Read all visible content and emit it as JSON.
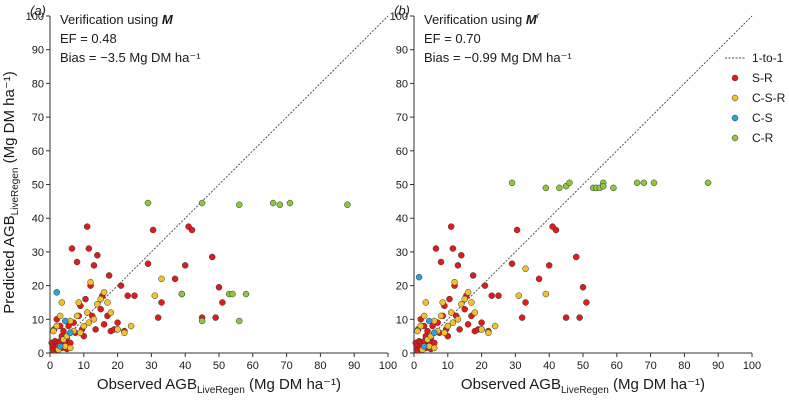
{
  "chart_data": [
    {
      "type": "scatter",
      "panel_label": "(a)",
      "annotation": {
        "title_prefix": "Verification using ",
        "title_var": "M",
        "title_sup": "",
        "ef": "EF = 0.48",
        "bias": "Bias = −3.5 Mg DM ha⁻¹"
      },
      "xlabel": {
        "main": "Observed AGB",
        "sub": "LiveRegen",
        "units": " (Mg DM ha⁻¹)"
      },
      "ylabel": {
        "main": "Predicted AGB",
        "sub": "LiveRegen",
        "units": " (Mg DM ha⁻¹)"
      },
      "xlim": [
        0,
        100
      ],
      "ylim": [
        0,
        100
      ],
      "xticks": [
        "0",
        "10",
        "20",
        "30",
        "40",
        "50",
        "60",
        "70",
        "80",
        "90",
        "100"
      ],
      "yticks": [
        "0",
        "10",
        "20",
        "30",
        "40",
        "50",
        "60",
        "70",
        "80",
        "90",
        "100"
      ],
      "reference_line": "1-to-1",
      "series": [
        {
          "name": "S-R",
          "color": "#e31a1c",
          "points": [
            [
              0.5,
              3
            ],
            [
              0.8,
              1.5
            ],
            [
              1,
              2.5
            ],
            [
              1.2,
              0.8
            ],
            [
              1.5,
              3.5
            ],
            [
              1.8,
              2
            ],
            [
              2,
              1.2
            ],
            [
              2.2,
              3
            ],
            [
              2.5,
              2.2
            ],
            [
              3,
              3.5
            ],
            [
              3.5,
              1.5
            ],
            [
              4,
              2.5
            ],
            [
              4.5,
              3
            ],
            [
              5,
              1.2
            ],
            [
              1.2,
              7
            ],
            [
              2,
              10
            ],
            [
              3,
              8
            ],
            [
              3.5,
              5
            ],
            [
              4,
              6.5
            ],
            [
              5,
              4.5
            ],
            [
              5.5,
              8
            ],
            [
              6,
              3
            ],
            [
              6.5,
              31
            ],
            [
              7,
              9
            ],
            [
              7.5,
              6
            ],
            [
              8,
              27
            ],
            [
              8.5,
              11
            ],
            [
              9,
              14
            ],
            [
              9.5,
              7
            ],
            [
              10,
              5
            ],
            [
              10.5,
              16
            ],
            [
              11,
              37.5
            ],
            [
              11.5,
              31
            ],
            [
              12,
              20
            ],
            [
              12.5,
              11
            ],
            [
              13,
              26
            ],
            [
              13.5,
              7
            ],
            [
              14,
              29
            ],
            [
              15,
              13
            ],
            [
              15.5,
              17
            ],
            [
              16,
              8.5
            ],
            [
              17,
              11
            ],
            [
              17.5,
              23
            ],
            [
              18,
              6.5
            ],
            [
              19,
              7
            ],
            [
              20,
              9
            ],
            [
              21,
              20
            ],
            [
              22,
              6.5
            ],
            [
              23,
              17
            ],
            [
              25,
              17
            ],
            [
              29,
              26.5
            ],
            [
              30.5,
              36.5
            ],
            [
              32,
              10.5
            ],
            [
              33,
              15
            ],
            [
              37,
              22
            ],
            [
              40,
              26
            ],
            [
              41,
              37.5
            ],
            [
              42,
              36.5
            ],
            [
              45,
              10.5
            ],
            [
              48,
              28.5
            ],
            [
              49,
              10.5
            ],
            [
              50,
              19.5
            ],
            [
              51,
              15
            ],
            [
              20,
              7
            ]
          ]
        },
        {
          "name": "C-S-R",
          "color": "#f2c12e",
          "points": [
            [
              1,
              6.5
            ],
            [
              2,
              8
            ],
            [
              3,
              11
            ],
            [
              3.5,
              15
            ],
            [
              4,
              4
            ],
            [
              5,
              5
            ],
            [
              6,
              9.5
            ],
            [
              7,
              6.5
            ],
            [
              8,
              11
            ],
            [
              8.5,
              15
            ],
            [
              9,
              6
            ],
            [
              10,
              8
            ],
            [
              11,
              12
            ],
            [
              11.5,
              9
            ],
            [
              12,
              21
            ],
            [
              13,
              10
            ],
            [
              14,
              14.5
            ],
            [
              15,
              16
            ],
            [
              16,
              18
            ],
            [
              17,
              15
            ],
            [
              18,
              12
            ],
            [
              20,
              7
            ],
            [
              22,
              6
            ],
            [
              24,
              8
            ],
            [
              31,
              17
            ],
            [
              33,
              22
            ],
            [
              39,
              17.5
            ],
            [
              2.5,
              1
            ],
            [
              4.5,
              2
            ],
            [
              6,
              1.5
            ]
          ]
        },
        {
          "name": "C-S",
          "color": "#29a3d9",
          "points": [
            [
              2,
              18
            ],
            [
              4.5,
              9.5
            ],
            [
              6,
              6
            ],
            [
              3,
              2
            ]
          ]
        },
        {
          "name": "C-R",
          "color": "#8dc63f",
          "points": [
            [
              29,
              44.5
            ],
            [
              45,
              44.5
            ],
            [
              56,
              44
            ],
            [
              66,
              44.5
            ],
            [
              68,
              44
            ],
            [
              71,
              44.5
            ],
            [
              88,
              44
            ],
            [
              39,
              17.5
            ],
            [
              53,
              17.5
            ],
            [
              54,
              17.5
            ],
            [
              58,
              17.5
            ],
            [
              56,
              9.5
            ],
            [
              45,
              9.5
            ]
          ]
        }
      ]
    },
    {
      "type": "scatter",
      "panel_label": "(b)",
      "annotation": {
        "title_prefix": "Verification using ",
        "title_var": "M",
        "title_sup": "r",
        "ef": "EF = 0.70",
        "bias": "Bias = −0.99 Mg DM ha⁻¹"
      },
      "xlabel": {
        "main": "Observed AGB",
        "sub": "LiveRegen",
        "units": " (Mg DM ha⁻¹)"
      },
      "ylabel": null,
      "xlim": [
        0,
        100
      ],
      "ylim": [
        0,
        100
      ],
      "xticks": [
        "0",
        "10",
        "20",
        "30",
        "40",
        "50",
        "60",
        "70",
        "80",
        "90",
        "100"
      ],
      "yticks": [
        "0",
        "10",
        "20",
        "30",
        "40",
        "50",
        "60",
        "70",
        "80",
        "90",
        "100"
      ],
      "reference_line": "1-to-1",
      "legend": [
        "1-to-1",
        "S-R",
        "C-S-R",
        "C-S",
        "C-R"
      ],
      "series": [
        {
          "name": "S-R",
          "color": "#e31a1c",
          "points": [
            [
              0.5,
              3
            ],
            [
              0.8,
              1.5
            ],
            [
              1,
              2.5
            ],
            [
              1.2,
              0.8
            ],
            [
              1.5,
              3.5
            ],
            [
              1.8,
              2
            ],
            [
              2,
              1.2
            ],
            [
              2.2,
              3
            ],
            [
              2.5,
              2.2
            ],
            [
              3,
              3.5
            ],
            [
              3.5,
              1.5
            ],
            [
              4,
              2.5
            ],
            [
              4.5,
              3
            ],
            [
              5,
              1.2
            ],
            [
              1.2,
              7
            ],
            [
              2,
              10
            ],
            [
              3,
              8
            ],
            [
              3.5,
              5
            ],
            [
              4,
              6.5
            ],
            [
              5,
              4.5
            ],
            [
              5.5,
              8
            ],
            [
              6,
              3
            ],
            [
              6.5,
              31
            ],
            [
              7,
              9
            ],
            [
              7.5,
              6
            ],
            [
              8,
              27
            ],
            [
              8.5,
              11
            ],
            [
              9,
              14
            ],
            [
              9.5,
              7
            ],
            [
              10,
              5
            ],
            [
              10.5,
              16
            ],
            [
              11,
              37.5
            ],
            [
              11.5,
              31
            ],
            [
              12,
              20
            ],
            [
              12.5,
              11
            ],
            [
              13,
              26
            ],
            [
              13.5,
              7
            ],
            [
              14,
              29
            ],
            [
              15,
              13
            ],
            [
              15.5,
              17
            ],
            [
              16,
              8.5
            ],
            [
              17,
              11
            ],
            [
              17.5,
              23
            ],
            [
              18,
              6.5
            ],
            [
              19,
              7
            ],
            [
              20,
              9
            ],
            [
              21,
              20
            ],
            [
              22,
              6.5
            ],
            [
              23,
              17
            ],
            [
              25,
              17
            ],
            [
              29,
              26.5
            ],
            [
              30.5,
              36.5
            ],
            [
              32,
              10.5
            ],
            [
              33,
              15
            ],
            [
              37,
              22
            ],
            [
              40,
              26
            ],
            [
              41,
              37.5
            ],
            [
              42,
              36.5
            ],
            [
              45,
              10.5
            ],
            [
              48,
              28.5
            ],
            [
              49,
              10.5
            ],
            [
              50,
              19.5
            ],
            [
              51,
              15
            ],
            [
              20,
              7
            ]
          ]
        },
        {
          "name": "C-S-R",
          "color": "#f2c12e",
          "points": [
            [
              1,
              6.5
            ],
            [
              2,
              8
            ],
            [
              3,
              11
            ],
            [
              3.5,
              15
            ],
            [
              4,
              4
            ],
            [
              5,
              5
            ],
            [
              6,
              9.5
            ],
            [
              7,
              6.5
            ],
            [
              8,
              11
            ],
            [
              8.5,
              15
            ],
            [
              9,
              6
            ],
            [
              10,
              8
            ],
            [
              11,
              12
            ],
            [
              11.5,
              9
            ],
            [
              12,
              21
            ],
            [
              13,
              10
            ],
            [
              14,
              14.5
            ],
            [
              15,
              16
            ],
            [
              16,
              18
            ],
            [
              17,
              15
            ],
            [
              18,
              12
            ],
            [
              20,
              7
            ],
            [
              22,
              6
            ],
            [
              24,
              8
            ],
            [
              31,
              17
            ],
            [
              33,
              25
            ],
            [
              39,
              17.5
            ],
            [
              2.5,
              1
            ],
            [
              4.5,
              2
            ],
            [
              6,
              1.5
            ]
          ]
        },
        {
          "name": "C-S",
          "color": "#29a3d9",
          "points": [
            [
              1.5,
              22.5
            ],
            [
              4.5,
              9.5
            ],
            [
              6,
              6
            ],
            [
              3,
              2
            ]
          ]
        },
        {
          "name": "C-R",
          "color": "#8dc63f",
          "points": [
            [
              29,
              50.5
            ],
            [
              39,
              49
            ],
            [
              43,
              49
            ],
            [
              45,
              49.5
            ],
            [
              46,
              50.5
            ],
            [
              53,
              49
            ],
            [
              54,
              49
            ],
            [
              55,
              49
            ],
            [
              56,
              50.5
            ],
            [
              56,
              49.5
            ],
            [
              59,
              49
            ],
            [
              66,
              50.5
            ],
            [
              68,
              50.5
            ],
            [
              71,
              50.5
            ],
            [
              87,
              50.5
            ]
          ]
        }
      ]
    }
  ]
}
